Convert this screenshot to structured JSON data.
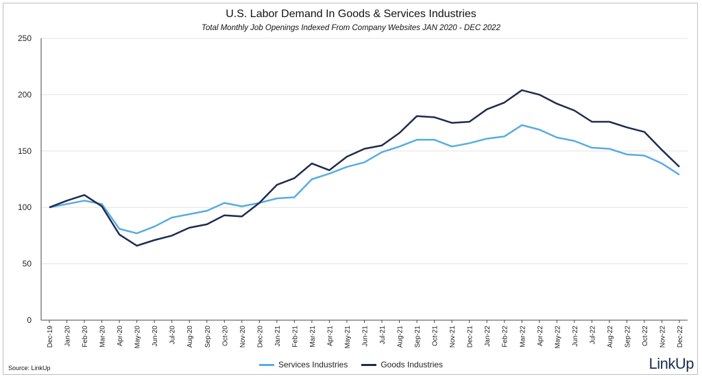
{
  "colors": {
    "services": "#56ace3",
    "goods": "#1f2b4d",
    "grid": "#e3e3e3",
    "axis": "#444444"
  },
  "footer": {
    "source": "Source: LinkUp",
    "logo": "LinkUp"
  },
  "chart_data": {
    "type": "line",
    "title": "U.S. Labor Demand In Goods & Services Industries",
    "subtitle": "Total Monthly Job Openings Indexed From Company Websites JAN 2020 - DEC 2022",
    "xlabel": "",
    "ylabel": "",
    "ylim": [
      0,
      250
    ],
    "yticks": [
      0,
      50,
      100,
      150,
      200,
      250
    ],
    "grid": "horizontal",
    "legend": "bottom-center",
    "categories": [
      "Dec-19",
      "Jan-20",
      "Feb-20",
      "Mar-20",
      "Apr-20",
      "May-20",
      "Jun-20",
      "Jul-20",
      "Aug-20",
      "Sep-20",
      "Oct-20",
      "Nov-20",
      "Dec-20",
      "Jan-21",
      "Feb-21",
      "Mar-21",
      "Apr-21",
      "May-21",
      "Jun-21",
      "Jul-21",
      "Aug-21",
      "Sep-21",
      "Oct-21",
      "Nov-21",
      "Dec-21",
      "Jan-22",
      "Feb-22",
      "Mar-22",
      "Apr-22",
      "May-22",
      "Jun-22",
      "Jul-22",
      "Aug-22",
      "Sep-22",
      "Oct-22",
      "Nov-22",
      "Dec-22"
    ],
    "series": [
      {
        "name": "Services Industries",
        "color": "#56ace3",
        "values": [
          100,
          103,
          106,
          103,
          81,
          77,
          83,
          91,
          94,
          97,
          104,
          101,
          104,
          108,
          109,
          125,
          130,
          136,
          140,
          149,
          154,
          160,
          160,
          154,
          157,
          161,
          163,
          173,
          169,
          162,
          159,
          153,
          152,
          147,
          146,
          139,
          129
        ]
      },
      {
        "name": "Goods Industries",
        "color": "#1f2b4d",
        "values": [
          100,
          106,
          111,
          101,
          76,
          66,
          71,
          75,
          82,
          85,
          93,
          92,
          104,
          120,
          126,
          139,
          133,
          145,
          152,
          155,
          166,
          181,
          180,
          175,
          176,
          187,
          193,
          204,
          200,
          192,
          186,
          176,
          176,
          171,
          167,
          151,
          136
        ]
      }
    ]
  }
}
